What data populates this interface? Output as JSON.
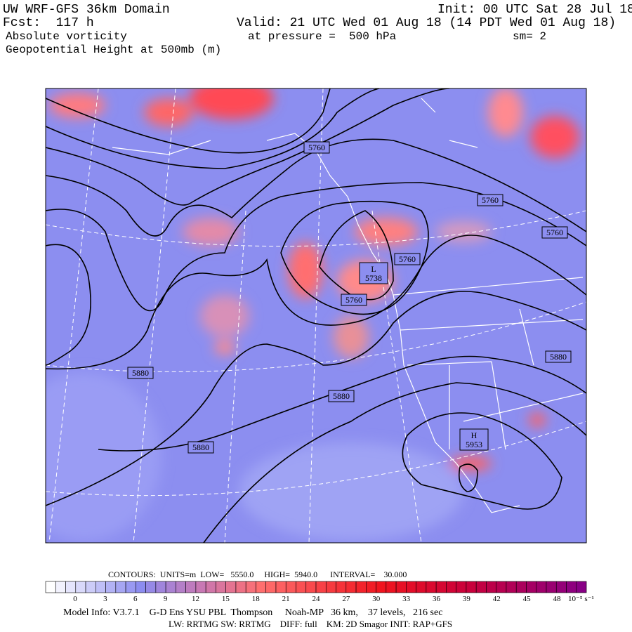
{
  "header": {
    "title": "UW WRF-GFS 36km Domain",
    "init": "Init: 00 UTC Sat 28 Jul 18",
    "forecast": "Fcst:  117 h",
    "valid": "Valid: 21 UTC Wed 01 Aug 18 (14 PDT Wed 01 Aug 18)",
    "field": "Absolute vorticity",
    "pressure": "at pressure =  500 hPa",
    "smoothing": "sm= 2",
    "contour_field": "Geopotential Height at 500mb (m)"
  },
  "map": {
    "contour_labels": [
      5760,
      5760,
      5760,
      5760,
      5760,
      5880,
      5880,
      5880,
      5880
    ],
    "low": {
      "symbol": "L",
      "value": 5738
    },
    "high": {
      "symbol": "H",
      "value": 5953
    }
  },
  "footer": {
    "contours": "CONTOURS:  UNITS=m  LOW=   5550.0     HIGH=  5940.0      INTERVAL=    30.000",
    "colorbar_ticks": [
      0,
      3,
      6,
      9,
      12,
      15,
      18,
      21,
      24,
      27,
      30,
      33,
      36,
      39,
      42,
      45,
      48
    ],
    "colorbar_unit": "10⁻⁵ s⁻¹",
    "model_info": "Model Info: V3.7.1    G-D Ens YSU PBL  Thompson     Noah-MP   36 km,    37 levels,   216 sec",
    "physics": "LW: RRTMG SW: RRTMG    DIFF: full    KM: 2D Smagor INIT: RAP+GFS"
  }
}
